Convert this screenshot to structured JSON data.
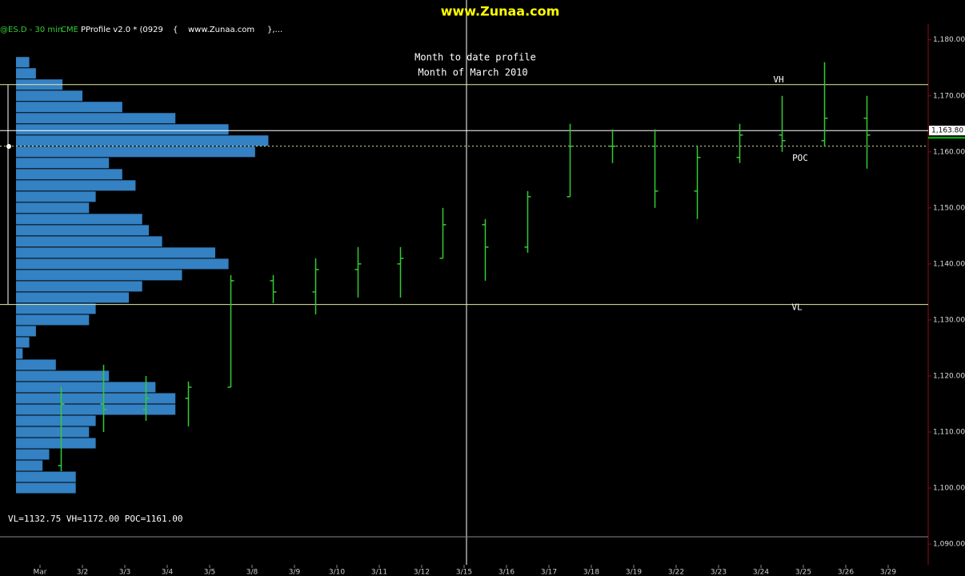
{
  "chart_data": {
    "type": "ohlc",
    "watermark": "www.Zunaa.com",
    "header": [
      "@ES.D - 30 min",
      "CME",
      "PProfile v2.0 * (0929",
      "{",
      "www.Zunaa.com",
      "},..."
    ],
    "title": "Month to date profile",
    "subtitle": "Month of March 2010",
    "categories": [
      "Mar",
      "3/2",
      "3/3",
      "3/4",
      "3/5",
      "3/8",
      "3/9",
      "3/10",
      "3/11",
      "3/12",
      "3/15",
      "3/16",
      "3/17",
      "3/18",
      "3/19",
      "3/22",
      "3/23",
      "3/24",
      "3/25",
      "3/26",
      "3/29"
    ],
    "series": [
      {
        "name": "open",
        "color": "#33cc33",
        "values": [
          1104,
          1115,
          1114,
          1116,
          1118,
          1137,
          1135,
          1139,
          1140,
          1141,
          1147,
          1143,
          1152,
          1161,
          1161,
          1153,
          1159,
          1163,
          1162,
          1166,
          null
        ]
      },
      {
        "name": "high",
        "color": "#33cc33",
        "values": [
          1118,
          1122,
          1120,
          1119,
          1138,
          1138,
          1141,
          1143,
          1143,
          1150,
          1148,
          1153,
          1165,
          1164,
          1164,
          1161,
          1165,
          1170,
          1176,
          1170,
          null
        ]
      },
      {
        "name": "low",
        "color": "#33cc33",
        "values": [
          1103,
          1110,
          1112,
          1111,
          1118,
          1133,
          1131,
          1134,
          1134,
          1141,
          1137,
          1142,
          1152,
          1158,
          1150,
          1148,
          1158,
          1160,
          1161,
          1157,
          null
        ]
      },
      {
        "name": "close",
        "color": "#33cc33",
        "values": [
          1115,
          1114,
          1116,
          1118,
          1137,
          1135,
          1139,
          1140,
          1141,
          1147,
          1143,
          1152,
          1161,
          1161,
          1153,
          1159,
          1163,
          1162,
          1166,
          1163,
          null
        ]
      }
    ],
    "profile": {
      "color": "#3a8fd8",
      "prices": [
        1176,
        1174,
        1172,
        1170,
        1168,
        1166,
        1164,
        1162,
        1160,
        1158,
        1156,
        1154,
        1152,
        1150,
        1148,
        1146,
        1144,
        1142,
        1140,
        1138,
        1136,
        1134,
        1132,
        1130,
        1128,
        1126,
        1124,
        1122,
        1120,
        1118,
        1116,
        1114,
        1112,
        1110,
        1108,
        1106,
        1104,
        1102,
        1100
      ],
      "tpo_counts": [
        2,
        3,
        7,
        10,
        16,
        24,
        32,
        38,
        36,
        14,
        16,
        18,
        12,
        11,
        19,
        20,
        22,
        30,
        32,
        25,
        19,
        17,
        12,
        11,
        3,
        2,
        1,
        6,
        14,
        21,
        24,
        24,
        12,
        11,
        12,
        5,
        4,
        9,
        9
      ]
    },
    "levels": [
      {
        "name": "VH",
        "value": 1172,
        "color": "#e8e8a0"
      },
      {
        "name": "POC",
        "value": 1161,
        "color": "#e8e8a0"
      },
      {
        "name": "VL",
        "value": 1132.75,
        "color": "#e8e8a0"
      }
    ],
    "profile_stats": "VL=1132.75  VH=1172.00  POC=1161.00",
    "last_price": {
      "value": 1163.8,
      "label": "1,163.80"
    },
    "ylim": [
      1084.3,
      1187.1
    ],
    "yticks": [
      {
        "value": 1180,
        "label": "1,180.00"
      },
      {
        "value": 1170,
        "label": "1,170.00"
      },
      {
        "value": 1160,
        "label": "1,160.00"
      },
      {
        "value": 1150,
        "label": "1,150.00"
      },
      {
        "value": 1140,
        "label": "1,140.00"
      },
      {
        "value": 1130,
        "label": "1,130.00"
      },
      {
        "value": 1120,
        "label": "1,120.00"
      },
      {
        "value": 1110,
        "label": "1,110.00"
      },
      {
        "value": 1100,
        "label": "1,100.00"
      },
      {
        "value": 1090,
        "label": "1,090.00"
      }
    ]
  }
}
